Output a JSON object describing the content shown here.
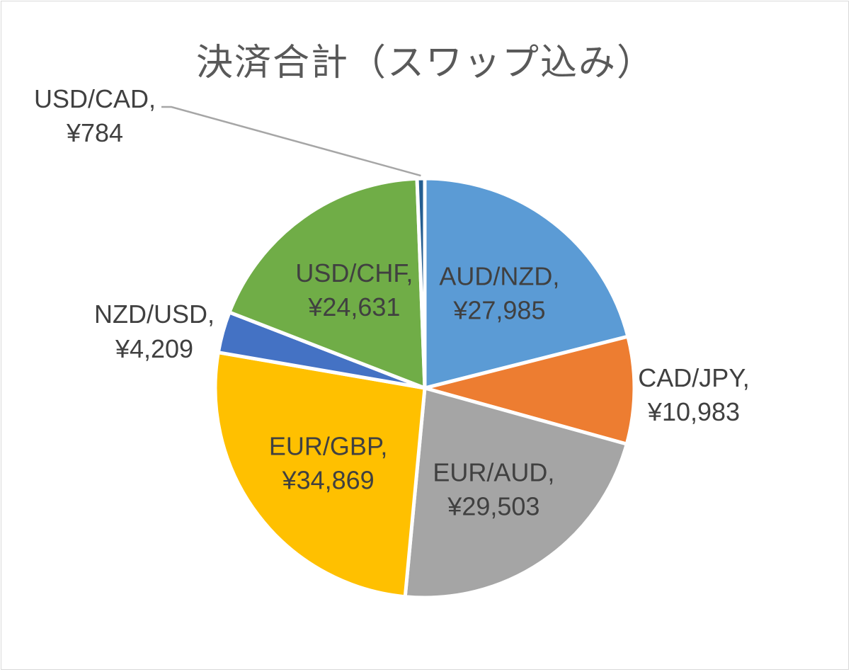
{
  "chart_data": {
    "type": "pie",
    "title": "決済合計（スワップ込み）",
    "start_angle_deg": 0,
    "direction": "clockwise",
    "slices": [
      {
        "name": "AUD/NZD",
        "value": 27985,
        "value_label": "¥27,985",
        "color": "#5b9bd5",
        "label_position": "inside"
      },
      {
        "name": "CAD/JPY",
        "value": 10983,
        "value_label": "¥10,983",
        "color": "#ed7d31",
        "label_position": "outside"
      },
      {
        "name": "EUR/AUD",
        "value": 29503,
        "value_label": "¥29,503",
        "color": "#a5a5a5",
        "label_position": "inside"
      },
      {
        "name": "EUR/GBP",
        "value": 34869,
        "value_label": "¥34,869",
        "color": "#ffc000",
        "label_position": "inside"
      },
      {
        "name": "NZD/USD",
        "value": 4209,
        "value_label": "¥4,209",
        "color": "#4472c4",
        "label_position": "outside"
      },
      {
        "name": "USD/CHF",
        "value": 24631,
        "value_label": "¥24,631",
        "color": "#70ad47",
        "label_position": "inside"
      },
      {
        "name": "USD/CAD",
        "value": 784,
        "value_label": "¥784",
        "color": "#255e91",
        "label_position": "outside-leader"
      }
    ]
  }
}
